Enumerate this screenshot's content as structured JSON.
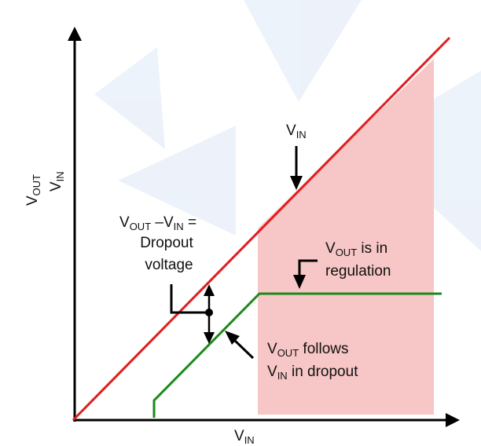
{
  "colors": {
    "background": "#ffffff",
    "watermark": "#e6eef8",
    "axis": "#000000",
    "vin_line": "#e01e1e",
    "vout_line": "#1a8a1a",
    "regulation_region": "#f7c6c6",
    "text": "#111111"
  },
  "axes": {
    "x_label": {
      "main": "V",
      "sub": "IN"
    },
    "y_label_top": {
      "main": "V",
      "sub": "OUT"
    },
    "y_label_bottom": {
      "main": "V",
      "sub": "IN"
    }
  },
  "annotations": {
    "vin_line_label": {
      "main": "V",
      "sub": "IN"
    },
    "dropout": {
      "line1_v1": "V",
      "line1_s1": "OUT",
      "line1_mid": " –V",
      "line1_s2": "IN",
      "line1_end": " =",
      "line2": "Dropout",
      "line3": "voltage"
    },
    "regulation": {
      "main": "V",
      "sub": "OUT",
      "rest": " is in",
      "line2": "regulation"
    },
    "follows": {
      "main": "V",
      "sub": "OUT",
      "rest": " follows",
      "line2_main": "V",
      "line2_sub": "IN",
      "line2_rest": " in dropout"
    }
  },
  "icons": [
    "arrow-up-icon",
    "arrow-right-icon",
    "arrow-down-icon",
    "double-arrow-icon"
  ]
}
